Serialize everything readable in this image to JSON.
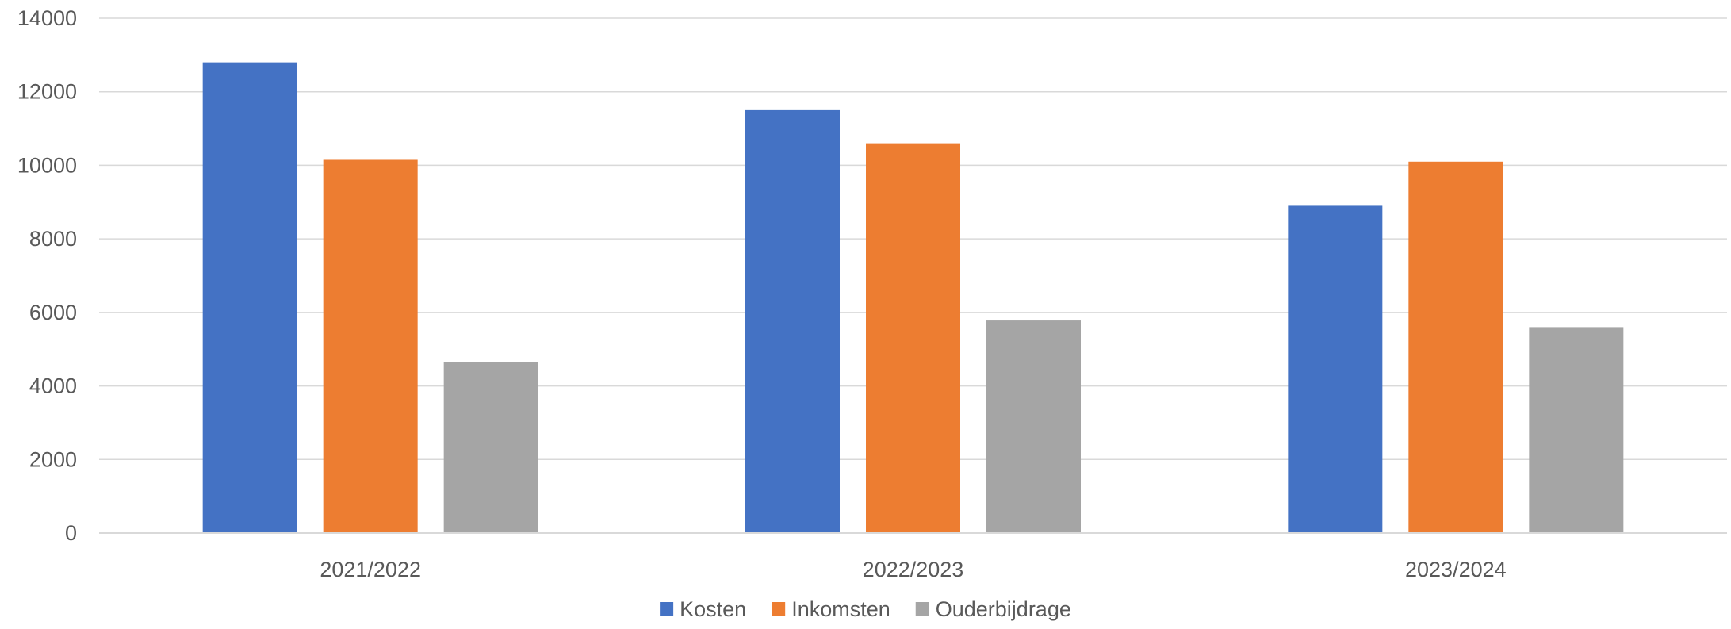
{
  "chart_data": {
    "type": "bar",
    "title": "",
    "xlabel": "",
    "ylabel": "",
    "categories": [
      "2021/2022",
      "2022/2023",
      "2023/2024"
    ],
    "series": [
      {
        "name": "Kosten",
        "color": "#4472C4",
        "values": [
          12800,
          11500,
          8900
        ]
      },
      {
        "name": "Inkomsten",
        "color": "#ED7D31",
        "values": [
          10150,
          10600,
          10100
        ]
      },
      {
        "name": "Ouderbijdrage",
        "color": "#A5A5A5",
        "values": [
          4650,
          5780,
          5600
        ]
      }
    ],
    "ylim": [
      0,
      14000
    ],
    "yticks": [
      0,
      2000,
      4000,
      6000,
      8000,
      10000,
      12000,
      14000
    ],
    "grid": true,
    "legend_position": "bottom"
  }
}
